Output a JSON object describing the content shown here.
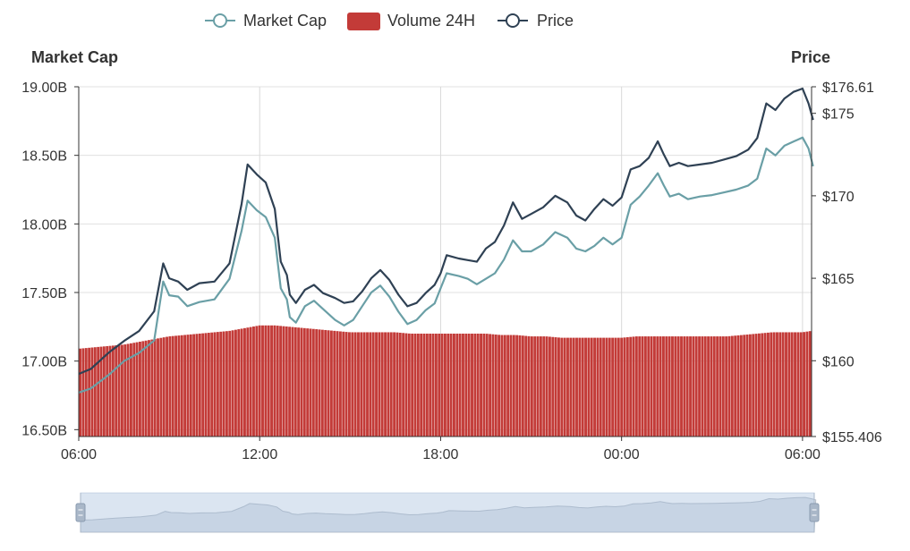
{
  "chart_data": {
    "type": "line",
    "legend": {
      "placement": "top-center",
      "items": [
        {
          "label": "Market Cap",
          "symbol": "line-circle",
          "color": "#6a9fa6"
        },
        {
          "label": "Volume 24H",
          "symbol": "rect",
          "color": "#c33b38"
        },
        {
          "label": "Price",
          "symbol": "line-circle",
          "color": "#2f4154"
        }
      ]
    },
    "left_axis": {
      "title": "Market Cap",
      "min": 16.45,
      "max": 19.0,
      "ticks": [
        {
          "value": 19.0,
          "label": "19.00B"
        },
        {
          "value": 18.5,
          "label": "18.50B"
        },
        {
          "value": 18.0,
          "label": "18.00B"
        },
        {
          "value": 17.5,
          "label": "17.50B"
        },
        {
          "value": 17.0,
          "label": "17.00B"
        },
        {
          "value": 16.5,
          "label": "16.50B"
        }
      ]
    },
    "right_axis": {
      "title": "Price",
      "min": 155.406,
      "max": 176.61,
      "ticks": [
        {
          "value": 176.61,
          "label": "$176.61"
        },
        {
          "value": 175,
          "label": "$175"
        },
        {
          "value": 170,
          "label": "$170"
        },
        {
          "value": 165,
          "label": "$165"
        },
        {
          "value": 160,
          "label": "$160"
        },
        {
          "value": 155.406,
          "label": "$155.406"
        }
      ]
    },
    "x_axis": {
      "min_hours": 0,
      "max_hours": 24.3,
      "ticks": [
        {
          "hours": 0,
          "label": "06:00"
        },
        {
          "hours": 6,
          "label": "12:00"
        },
        {
          "hours": 12,
          "label": "18:00"
        },
        {
          "hours": 18,
          "label": "00:00"
        },
        {
          "hours": 24,
          "label": "06:00"
        }
      ]
    },
    "grid": true,
    "series": [
      {
        "name": "Price",
        "kind": "line",
        "axis": "right",
        "color": "#2f4154",
        "points": [
          [
            0,
            159.2
          ],
          [
            0.4,
            159.5
          ],
          [
            1,
            160.5
          ],
          [
            1.5,
            161.2
          ],
          [
            2,
            161.8
          ],
          [
            2.5,
            163
          ],
          [
            2.8,
            165.9
          ],
          [
            3,
            165.0
          ],
          [
            3.3,
            164.8
          ],
          [
            3.6,
            164.3
          ],
          [
            4,
            164.7
          ],
          [
            4.5,
            164.8
          ],
          [
            5,
            165.9
          ],
          [
            5.4,
            169.5
          ],
          [
            5.6,
            171.9
          ],
          [
            5.9,
            171.3
          ],
          [
            6.2,
            170.8
          ],
          [
            6.5,
            169.2
          ],
          [
            6.7,
            166.0
          ],
          [
            6.9,
            165.2
          ],
          [
            7.0,
            164.0
          ],
          [
            7.2,
            163.5
          ],
          [
            7.5,
            164.3
          ],
          [
            7.8,
            164.6
          ],
          [
            8.1,
            164.1
          ],
          [
            8.5,
            163.8
          ],
          [
            8.8,
            163.5
          ],
          [
            9.1,
            163.6
          ],
          [
            9.4,
            164.2
          ],
          [
            9.7,
            165.0
          ],
          [
            10.0,
            165.5
          ],
          [
            10.3,
            164.9
          ],
          [
            10.6,
            164.0
          ],
          [
            10.9,
            163.3
          ],
          [
            11.2,
            163.5
          ],
          [
            11.5,
            164.1
          ],
          [
            11.8,
            164.6
          ],
          [
            12.0,
            165.3
          ],
          [
            12.2,
            166.4
          ],
          [
            12.6,
            166.2
          ],
          [
            12.9,
            166.1
          ],
          [
            13.2,
            166.0
          ],
          [
            13.5,
            166.8
          ],
          [
            13.8,
            167.2
          ],
          [
            14.1,
            168.2
          ],
          [
            14.4,
            169.6
          ],
          [
            14.7,
            168.6
          ],
          [
            15.0,
            168.9
          ],
          [
            15.4,
            169.3
          ],
          [
            15.8,
            170.0
          ],
          [
            16.2,
            169.6
          ],
          [
            16.5,
            168.8
          ],
          [
            16.8,
            168.5
          ],
          [
            17.1,
            169.2
          ],
          [
            17.4,
            169.8
          ],
          [
            17.7,
            169.4
          ],
          [
            18.0,
            169.9
          ],
          [
            18.3,
            171.6
          ],
          [
            18.6,
            171.8
          ],
          [
            18.9,
            172.3
          ],
          [
            19.2,
            173.3
          ],
          [
            19.4,
            172.5
          ],
          [
            19.6,
            171.8
          ],
          [
            19.9,
            172.0
          ],
          [
            20.2,
            171.8
          ],
          [
            20.6,
            171.9
          ],
          [
            21.0,
            172.0
          ],
          [
            21.4,
            172.2
          ],
          [
            21.8,
            172.4
          ],
          [
            22.2,
            172.8
          ],
          [
            22.5,
            173.5
          ],
          [
            22.8,
            175.6
          ],
          [
            23.1,
            175.2
          ],
          [
            23.4,
            175.9
          ],
          [
            23.7,
            176.3
          ],
          [
            24.0,
            176.5
          ],
          [
            24.2,
            175.6
          ],
          [
            24.35,
            174.6
          ]
        ]
      },
      {
        "name": "Market Cap",
        "kind": "line",
        "axis": "left",
        "color": "#6a9fa6",
        "points": [
          [
            0,
            16.77
          ],
          [
            0.4,
            16.8
          ],
          [
            1,
            16.9
          ],
          [
            1.5,
            17.0
          ],
          [
            2,
            17.06
          ],
          [
            2.5,
            17.15
          ],
          [
            2.8,
            17.58
          ],
          [
            3,
            17.48
          ],
          [
            3.3,
            17.47
          ],
          [
            3.6,
            17.4
          ],
          [
            4,
            17.43
          ],
          [
            4.5,
            17.45
          ],
          [
            5,
            17.6
          ],
          [
            5.4,
            17.95
          ],
          [
            5.6,
            18.17
          ],
          [
            5.9,
            18.1
          ],
          [
            6.2,
            18.05
          ],
          [
            6.5,
            17.9
          ],
          [
            6.7,
            17.53
          ],
          [
            6.9,
            17.45
          ],
          [
            7.0,
            17.32
          ],
          [
            7.2,
            17.28
          ],
          [
            7.5,
            17.4
          ],
          [
            7.8,
            17.44
          ],
          [
            8.1,
            17.38
          ],
          [
            8.5,
            17.3
          ],
          [
            8.8,
            17.26
          ],
          [
            9.1,
            17.3
          ],
          [
            9.4,
            17.4
          ],
          [
            9.7,
            17.5
          ],
          [
            10.0,
            17.55
          ],
          [
            10.3,
            17.47
          ],
          [
            10.6,
            17.36
          ],
          [
            10.9,
            17.27
          ],
          [
            11.2,
            17.3
          ],
          [
            11.5,
            17.37
          ],
          [
            11.8,
            17.42
          ],
          [
            12.0,
            17.53
          ],
          [
            12.2,
            17.64
          ],
          [
            12.6,
            17.62
          ],
          [
            12.9,
            17.6
          ],
          [
            13.2,
            17.56
          ],
          [
            13.5,
            17.6
          ],
          [
            13.8,
            17.64
          ],
          [
            14.1,
            17.74
          ],
          [
            14.4,
            17.88
          ],
          [
            14.7,
            17.8
          ],
          [
            15.0,
            17.8
          ],
          [
            15.4,
            17.85
          ],
          [
            15.8,
            17.94
          ],
          [
            16.2,
            17.9
          ],
          [
            16.5,
            17.82
          ],
          [
            16.8,
            17.8
          ],
          [
            17.1,
            17.84
          ],
          [
            17.4,
            17.9
          ],
          [
            17.7,
            17.85
          ],
          [
            18.0,
            17.9
          ],
          [
            18.3,
            18.14
          ],
          [
            18.6,
            18.2
          ],
          [
            18.9,
            18.28
          ],
          [
            19.2,
            18.37
          ],
          [
            19.4,
            18.28
          ],
          [
            19.6,
            18.2
          ],
          [
            19.9,
            18.22
          ],
          [
            20.2,
            18.18
          ],
          [
            20.6,
            18.2
          ],
          [
            21.0,
            18.21
          ],
          [
            21.4,
            18.23
          ],
          [
            21.8,
            18.25
          ],
          [
            22.2,
            18.28
          ],
          [
            22.5,
            18.33
          ],
          [
            22.8,
            18.55
          ],
          [
            23.1,
            18.5
          ],
          [
            23.4,
            18.57
          ],
          [
            23.7,
            18.6
          ],
          [
            24.0,
            18.63
          ],
          [
            24.2,
            18.55
          ],
          [
            24.35,
            18.42
          ]
        ]
      },
      {
        "name": "Volume 24H",
        "kind": "bar",
        "axis": "left",
        "color": "#c33b38",
        "points": [
          [
            0,
            17.09
          ],
          [
            0.5,
            17.1
          ],
          [
            1,
            17.11
          ],
          [
            1.5,
            17.12
          ],
          [
            2,
            17.14
          ],
          [
            2.5,
            17.16
          ],
          [
            3,
            17.18
          ],
          [
            3.5,
            17.19
          ],
          [
            4,
            17.2
          ],
          [
            4.5,
            17.21
          ],
          [
            5,
            17.22
          ],
          [
            5.5,
            17.24
          ],
          [
            6,
            17.26
          ],
          [
            6.5,
            17.26
          ],
          [
            7,
            17.25
          ],
          [
            7.5,
            17.24
          ],
          [
            8,
            17.23
          ],
          [
            8.5,
            17.22
          ],
          [
            9,
            17.21
          ],
          [
            9.5,
            17.21
          ],
          [
            10,
            17.21
          ],
          [
            10.5,
            17.21
          ],
          [
            11,
            17.2
          ],
          [
            11.5,
            17.2
          ],
          [
            12,
            17.2
          ],
          [
            12.5,
            17.2
          ],
          [
            13,
            17.2
          ],
          [
            13.5,
            17.2
          ],
          [
            14,
            17.19
          ],
          [
            14.5,
            17.19
          ],
          [
            15,
            17.18
          ],
          [
            15.5,
            17.18
          ],
          [
            16,
            17.17
          ],
          [
            16.5,
            17.17
          ],
          [
            17,
            17.17
          ],
          [
            17.5,
            17.17
          ],
          [
            18,
            17.17
          ],
          [
            18.5,
            17.18
          ],
          [
            19,
            17.18
          ],
          [
            19.5,
            17.18
          ],
          [
            20,
            17.18
          ],
          [
            20.5,
            17.18
          ],
          [
            21,
            17.18
          ],
          [
            21.5,
            17.18
          ],
          [
            22,
            17.19
          ],
          [
            22.5,
            17.2
          ],
          [
            23,
            17.21
          ],
          [
            23.5,
            17.21
          ],
          [
            24,
            17.21
          ],
          [
            24.3,
            17.22
          ]
        ]
      }
    ],
    "data_zoom": {
      "start_percent": 0,
      "end_percent": 100
    }
  }
}
